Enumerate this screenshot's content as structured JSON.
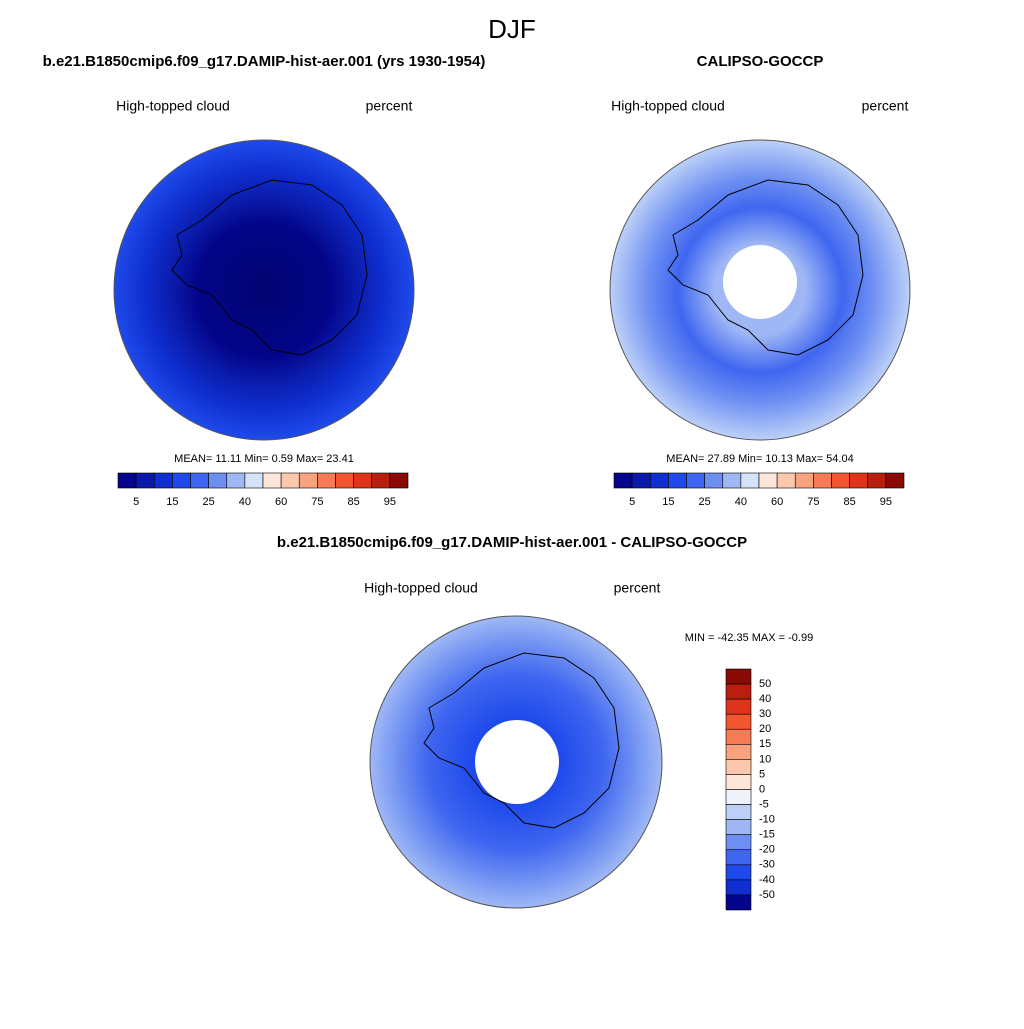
{
  "title": "DJF",
  "panels": [
    {
      "title": "b.e21.B1850cmip6.f09_g17.DAMIP-hist-aer.001 (yrs 1930-1954)",
      "left_label": "High-topped cloud",
      "right_label": "percent",
      "stats": "MEAN=  11.11  Min=   0.59  Max=  23.41"
    },
    {
      "title": "CALIPSO-GOCCP",
      "left_label": "High-topped cloud",
      "right_label": "percent",
      "stats": "MEAN=  27.89  Min=  10.13  Max=  54.04"
    },
    {
      "title": "b.e21.B1850cmip6.f09_g17.DAMIP-hist-aer.001 - CALIPSO-GOCCP",
      "left_label": "High-topped cloud",
      "right_label": "percent",
      "stats": "MIN = -42.35 MAX =  -0.99"
    }
  ],
  "colorbar": {
    "labels": [
      5,
      15,
      25,
      40,
      60,
      75,
      85,
      95
    ],
    "colors": [
      "#03058a",
      "#0a1aa8",
      "#0f2fd0",
      "#1f4aeb",
      "#3f66f0",
      "#6d8ff2",
      "#9fb8f5",
      "#d4e3f9",
      "#fde6d8",
      "#fbc8ad",
      "#f9a27f",
      "#f77c55",
      "#f3552f",
      "#e0341a",
      "#b81f0f",
      "#8a0a05"
    ]
  },
  "diff_colorbar": {
    "labels": [
      50,
      40,
      30,
      20,
      15,
      10,
      5,
      0,
      -5,
      -10,
      -15,
      -20,
      -30,
      -40,
      -50
    ],
    "colors": [
      "#8a0a05",
      "#b81f0f",
      "#e0341a",
      "#f3552f",
      "#f77c55",
      "#f9a27f",
      "#fbc8ad",
      "#fde6d8",
      "#eef3fb",
      "#bcd0f7",
      "#9fb8f5",
      "#6d8ff2",
      "#3f66f0",
      "#1f4aeb",
      "#0f2fd0",
      "#03058a"
    ]
  }
}
